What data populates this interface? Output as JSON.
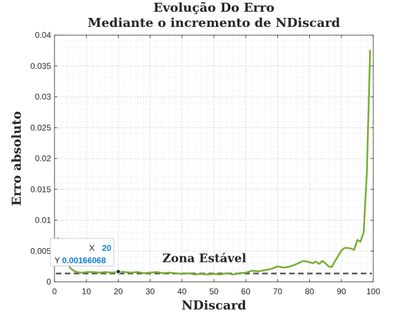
{
  "chart_data": {
    "type": "line",
    "title": [
      "Evolução Do Erro",
      "Mediante o incremento de NDiscard"
    ],
    "xlabel": "NDiscard",
    "ylabel": "Erro absoluto",
    "xlim": [
      0,
      100
    ],
    "ylim": [
      0,
      0.04
    ],
    "xticks": [
      0,
      10,
      20,
      30,
      40,
      50,
      60,
      70,
      80,
      90,
      100
    ],
    "yticks": [
      0,
      0.005,
      0.01,
      0.015,
      0.02,
      0.025,
      0.03,
      0.035,
      0.04
    ],
    "ytick_labels": [
      "0",
      "0.005",
      "0.01",
      "0.015",
      "0.02",
      "0.025",
      "0.03",
      "0.035",
      "0.04"
    ],
    "grid": "minor-dotted",
    "series": [
      {
        "color": "#77ac30",
        "x": [
          1,
          2,
          3,
          4,
          5,
          6,
          7,
          8,
          9,
          10,
          12,
          14,
          16,
          18,
          20,
          22,
          24,
          26,
          28,
          30,
          32,
          34,
          36,
          38,
          40,
          42,
          44,
          46,
          48,
          50,
          52,
          54,
          56,
          58,
          60,
          62,
          64,
          66,
          68,
          70,
          72,
          74,
          76,
          78,
          80,
          81,
          82,
          83,
          84,
          85,
          86,
          87,
          88,
          89,
          90,
          91,
          92,
          93,
          94,
          95,
          96,
          97,
          98,
          99
        ],
        "y": [
          0.0072,
          0.0058,
          0.0042,
          0.0032,
          0.0022,
          0.0018,
          0.0016,
          0.0015,
          0.0015,
          0.0016,
          0.0016,
          0.0015,
          0.0016,
          0.0015,
          0.00166,
          0.0016,
          0.0015,
          0.0016,
          0.0014,
          0.0015,
          0.0016,
          0.0014,
          0.0015,
          0.0014,
          0.0013,
          0.0014,
          0.0012,
          0.0013,
          0.0012,
          0.0013,
          0.0012,
          0.0014,
          0.0012,
          0.0014,
          0.0015,
          0.0018,
          0.0017,
          0.0019,
          0.0021,
          0.0025,
          0.0023,
          0.0025,
          0.0029,
          0.0034,
          0.0032,
          0.003,
          0.0033,
          0.0029,
          0.0034,
          0.003,
          0.0025,
          0.0024,
          0.0034,
          0.0042,
          0.0051,
          0.0055,
          0.0055,
          0.0054,
          0.0052,
          0.0068,
          0.0065,
          0.0081,
          0.018,
          0.0376
        ]
      }
    ],
    "reference_line": {
      "y": 0.00135,
      "style": "dashed",
      "color": "#595959"
    },
    "annotation": {
      "text": "Zona Estável",
      "x": 47,
      "y": 0.0032
    },
    "datatip": {
      "x": 20,
      "y": 0.00166068,
      "x_label": "X",
      "y_label": "Y",
      "x_text": "20",
      "y_text": "0.00166068"
    }
  }
}
